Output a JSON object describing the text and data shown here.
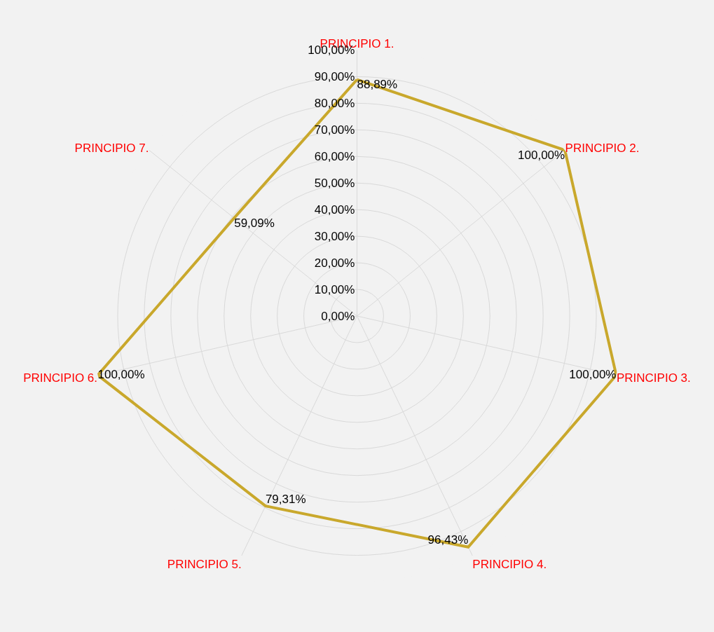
{
  "chart_data": {
    "type": "radar",
    "categories": [
      "PRINCIPIO 1.",
      "PRINCIPIO 2.",
      "PRINCIPIO 3.",
      "PRINCIPIO 4.",
      "PRINCIPIO 5.",
      "PRINCIPIO 6.",
      "PRINCIPIO 7."
    ],
    "series": [
      {
        "color": "#c9a82c",
        "values": [
          88.89,
          100,
          100,
          96.43,
          79.31,
          100,
          59.09
        ],
        "value_labels": [
          "88,89%",
          "100,00%",
          "100,00%",
          "96,43%",
          "79,31%",
          "100,00%",
          "59,09%"
        ]
      }
    ],
    "ylim": [
      0,
      100
    ],
    "yticks": [
      {
        "value": 0,
        "label": "0,00%"
      },
      {
        "value": 10,
        "label": "10,00%"
      },
      {
        "value": 20,
        "label": "20,00%"
      },
      {
        "value": 30,
        "label": "30,00%"
      },
      {
        "value": 40,
        "label": "40,00%"
      },
      {
        "value": 50,
        "label": "50,00%"
      },
      {
        "value": 60,
        "label": "60,00%"
      },
      {
        "value": 70,
        "label": "70,00%"
      },
      {
        "value": 80,
        "label": "80,00%"
      },
      {
        "value": 90,
        "label": "90,00%"
      },
      {
        "value": 100,
        "label": "100,00%"
      }
    ],
    "grid": true,
    "marker": "none",
    "line_style": "solid"
  }
}
